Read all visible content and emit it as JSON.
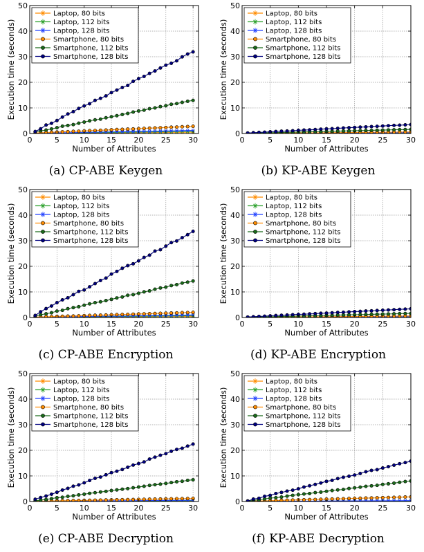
{
  "chart_data": [
    {
      "type": "line",
      "caption": "(a) CP-ABE Keygen",
      "xlabel": "Number of Attributes",
      "ylabel": "Execution time (seconds)",
      "xlim": [
        0,
        31
      ],
      "ylim": [
        0,
        50
      ],
      "xticks": [
        0,
        5,
        10,
        15,
        20,
        25,
        30
      ],
      "yticks": [
        0,
        10,
        20,
        30,
        40,
        50
      ],
      "grid": true,
      "legend": "top-left",
      "x": [
        1,
        30
      ],
      "series": [
        {
          "name": "Laptop, 80 bits",
          "color": "#ff8c00",
          "marker": "x",
          "values": [
            0.05,
            0.5
          ]
        },
        {
          "name": "Laptop, 112 bits",
          "color": "#2ca02c",
          "marker": "x",
          "values": [
            0.08,
            0.8
          ]
        },
        {
          "name": "Laptop, 128 bits",
          "color": "#1f3fff",
          "marker": "x",
          "values": [
            0.1,
            1.2
          ]
        },
        {
          "name": "Smartphone, 80 bits",
          "color": "#ff8c00",
          "marker": "o",
          "values": [
            0.2,
            2.8
          ]
        },
        {
          "name": "Smartphone, 112 bits",
          "color": "#1a6b1a",
          "marker": "o",
          "values": [
            0.6,
            13.0
          ]
        },
        {
          "name": "Smartphone, 128 bits",
          "color": "#000080",
          "marker": "o",
          "values": [
            1.0,
            31.8
          ]
        }
      ]
    },
    {
      "type": "line",
      "caption": "(b) KP-ABE Keygen",
      "xlabel": "Number of Attributes",
      "ylabel": "Execution time (seconds)",
      "xlim": [
        0,
        30
      ],
      "ylim": [
        0,
        50
      ],
      "xticks": [
        0,
        5,
        10,
        15,
        20,
        25,
        30
      ],
      "yticks": [
        0,
        10,
        20,
        30,
        40,
        50
      ],
      "grid": true,
      "legend": "top-left",
      "x": [
        1,
        30
      ],
      "series": [
        {
          "name": "Laptop, 80 bits",
          "color": "#ff8c00",
          "marker": "x",
          "values": [
            0.02,
            0.15
          ]
        },
        {
          "name": "Laptop, 112 bits",
          "color": "#2ca02c",
          "marker": "x",
          "values": [
            0.03,
            0.25
          ]
        },
        {
          "name": "Laptop, 128 bits",
          "color": "#1f3fff",
          "marker": "x",
          "values": [
            0.04,
            0.35
          ]
        },
        {
          "name": "Smartphone, 80 bits",
          "color": "#ff8c00",
          "marker": "o",
          "values": [
            0.05,
            0.6
          ]
        },
        {
          "name": "Smartphone, 112 bits",
          "color": "#1a6b1a",
          "marker": "o",
          "values": [
            0.1,
            1.6
          ]
        },
        {
          "name": "Smartphone, 128 bits",
          "color": "#000080",
          "marker": "o",
          "values": [
            0.2,
            3.5
          ]
        }
      ]
    },
    {
      "type": "line",
      "caption": "(c) CP-ABE Encryption",
      "xlabel": "Number of Attributes",
      "ylabel": "Execution time (seconds)",
      "xlim": [
        0,
        31
      ],
      "ylim": [
        0,
        50
      ],
      "xticks": [
        0,
        5,
        10,
        15,
        20,
        25,
        30
      ],
      "yticks": [
        0,
        10,
        20,
        30,
        40,
        50
      ],
      "grid": true,
      "legend": "top-left",
      "x": [
        1,
        30
      ],
      "series": [
        {
          "name": "Laptop, 80 bits",
          "color": "#ff8c00",
          "marker": "x",
          "values": [
            0.05,
            0.4
          ]
        },
        {
          "name": "Laptop, 112 bits",
          "color": "#2ca02c",
          "marker": "x",
          "values": [
            0.08,
            0.7
          ]
        },
        {
          "name": "Laptop, 128 bits",
          "color": "#1f3fff",
          "marker": "x",
          "values": [
            0.1,
            1.0
          ]
        },
        {
          "name": "Smartphone, 80 bits",
          "color": "#ff8c00",
          "marker": "o",
          "values": [
            0.15,
            2.0
          ]
        },
        {
          "name": "Smartphone, 112 bits",
          "color": "#1a6b1a",
          "marker": "o",
          "values": [
            0.5,
            14.3
          ]
        },
        {
          "name": "Smartphone, 128 bits",
          "color": "#000080",
          "marker": "o",
          "values": [
            1.0,
            33.5
          ]
        }
      ]
    },
    {
      "type": "line",
      "caption": "(d) KP-ABE Encryption",
      "xlabel": "Number of Attributes",
      "ylabel": "Execution time (seconds)",
      "xlim": [
        0,
        30
      ],
      "ylim": [
        0,
        50
      ],
      "xticks": [
        0,
        5,
        10,
        15,
        20,
        25,
        30
      ],
      "yticks": [
        0,
        10,
        20,
        30,
        40,
        50
      ],
      "grid": true,
      "legend": "top-left",
      "x": [
        1,
        30
      ],
      "series": [
        {
          "name": "Laptop, 80 bits",
          "color": "#ff8c00",
          "marker": "x",
          "values": [
            0.02,
            0.15
          ]
        },
        {
          "name": "Laptop, 112 bits",
          "color": "#2ca02c",
          "marker": "x",
          "values": [
            0.03,
            0.25
          ]
        },
        {
          "name": "Laptop, 128 bits",
          "color": "#1f3fff",
          "marker": "x",
          "values": [
            0.04,
            0.35
          ]
        },
        {
          "name": "Smartphone, 80 bits",
          "color": "#ff8c00",
          "marker": "o",
          "values": [
            0.05,
            0.6
          ]
        },
        {
          "name": "Smartphone, 112 bits",
          "color": "#1a6b1a",
          "marker": "o",
          "values": [
            0.1,
            1.6
          ]
        },
        {
          "name": "Smartphone, 128 bits",
          "color": "#000080",
          "marker": "o",
          "values": [
            0.2,
            3.4
          ]
        }
      ]
    },
    {
      "type": "line",
      "caption": "(e) CP-ABE Decryption",
      "xlabel": "Number of Attributes",
      "ylabel": "Execution time (seconds)",
      "xlim": [
        0,
        31
      ],
      "ylim": [
        0,
        50
      ],
      "xticks": [
        0,
        5,
        10,
        15,
        20,
        25,
        30
      ],
      "yticks": [
        0,
        10,
        20,
        30,
        40,
        50
      ],
      "grid": true,
      "legend": "top-left",
      "x": [
        1,
        30
      ],
      "series": [
        {
          "name": "Laptop, 80 bits",
          "color": "#ff8c00",
          "marker": "x",
          "values": [
            0.03,
            0.2
          ]
        },
        {
          "name": "Laptop, 112 bits",
          "color": "#2ca02c",
          "marker": "x",
          "values": [
            0.05,
            0.35
          ]
        },
        {
          "name": "Laptop, 128 bits",
          "color": "#1f3fff",
          "marker": "x",
          "values": [
            0.08,
            0.5
          ]
        },
        {
          "name": "Smartphone, 80 bits",
          "color": "#ff8c00",
          "marker": "o",
          "values": [
            0.1,
            1.2
          ]
        },
        {
          "name": "Smartphone, 112 bits",
          "color": "#1a6b1a",
          "marker": "o",
          "values": [
            0.3,
            8.5
          ]
        },
        {
          "name": "Smartphone, 128 bits",
          "color": "#000080",
          "marker": "o",
          "values": [
            0.7,
            22.4
          ]
        }
      ]
    },
    {
      "type": "line",
      "caption": "(f) KP-ABE Decryption",
      "xlabel": "Number of Attributes",
      "ylabel": "Execution time (seconds)",
      "xlim": [
        0,
        30
      ],
      "ylim": [
        0,
        50
      ],
      "xticks": [
        0,
        5,
        10,
        15,
        20,
        25,
        30
      ],
      "yticks": [
        0,
        10,
        20,
        30,
        40,
        50
      ],
      "grid": true,
      "legend": "top-left",
      "x": [
        1,
        30
      ],
      "series": [
        {
          "name": "Laptop, 80 bits",
          "color": "#ff8c00",
          "marker": "x",
          "values": [
            0.02,
            0.15
          ]
        },
        {
          "name": "Laptop, 112 bits",
          "color": "#2ca02c",
          "marker": "x",
          "values": [
            0.03,
            0.25
          ]
        },
        {
          "name": "Laptop, 128 bits",
          "color": "#1f3fff",
          "marker": "x",
          "values": [
            0.04,
            0.35
          ]
        },
        {
          "name": "Smartphone, 80 bits",
          "color": "#ff8c00",
          "marker": "o",
          "values": [
            0.1,
            1.8
          ]
        },
        {
          "name": "Smartphone, 112 bits",
          "color": "#1a6b1a",
          "marker": "o",
          "values": [
            0.2,
            8.0
          ]
        },
        {
          "name": "Smartphone, 128 bits",
          "color": "#000080",
          "marker": "o",
          "values": [
            0.3,
            15.8
          ]
        }
      ]
    }
  ]
}
